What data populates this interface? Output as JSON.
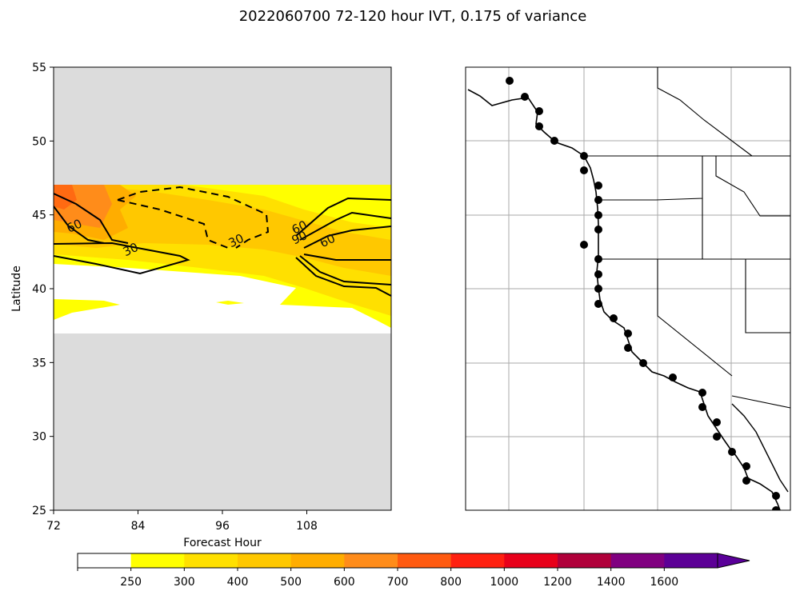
{
  "chart_data": {
    "type": "contour",
    "title": "2022060700 72-120 hour IVT, 0.175 of variance",
    "panel_left": {
      "xlabel": "Forecast Hour",
      "ylabel": "Latitude",
      "xlim": [
        72,
        120
      ],
      "ylim": [
        25,
        55
      ],
      "xticks": [
        72,
        84,
        96,
        108
      ],
      "yticks": [
        25,
        30,
        35,
        40,
        45,
        50,
        55
      ],
      "data_lat_range": [
        37,
        47
      ],
      "fill_levels": [
        {
          "label": "250-300",
          "color": "#ffff00"
        },
        {
          "label": "300-400",
          "color": "#ffe000"
        },
        {
          "label": "400-500",
          "color": "#ffc800"
        },
        {
          "label": "500-600",
          "color": "#ffad00"
        },
        {
          "label": "600-700",
          "color": "#ff8c1a"
        },
        {
          "label": "700-800",
          "color": "#ff6a12"
        }
      ],
      "contour_labels": [
        {
          "text": "60",
          "hour": 75,
          "lat": 44.2
        },
        {
          "text": "30",
          "hour": 83,
          "lat": 42.6
        },
        {
          "text": "30",
          "hour": 98,
          "lat": 43.2
        },
        {
          "text": "60",
          "hour": 107,
          "lat": 44.1
        },
        {
          "text": "90",
          "hour": 107,
          "lat": 43.4
        },
        {
          "text": "60",
          "hour": 111,
          "lat": 43.2
        }
      ],
      "contour_levels": [
        "30",
        "60",
        "90"
      ]
    },
    "panel_right": {
      "region": "US West Coast and Baja California",
      "gridlines": true,
      "points": 30
    },
    "colorbar": {
      "boundaries": [
        "250",
        "300",
        "400",
        "500",
        "600",
        "700",
        "800",
        "1000",
        "1200",
        "1400",
        "1600"
      ],
      "colors": [
        "#ffffff",
        "#ffff00",
        "#ffe000",
        "#ffc800",
        "#ffad00",
        "#ff8c1a",
        "#ff5a10",
        "#ff2010",
        "#e8001a",
        "#b0003a",
        "#800080",
        "#5c0096",
        "#5a0099"
      ],
      "extend": "max"
    }
  }
}
